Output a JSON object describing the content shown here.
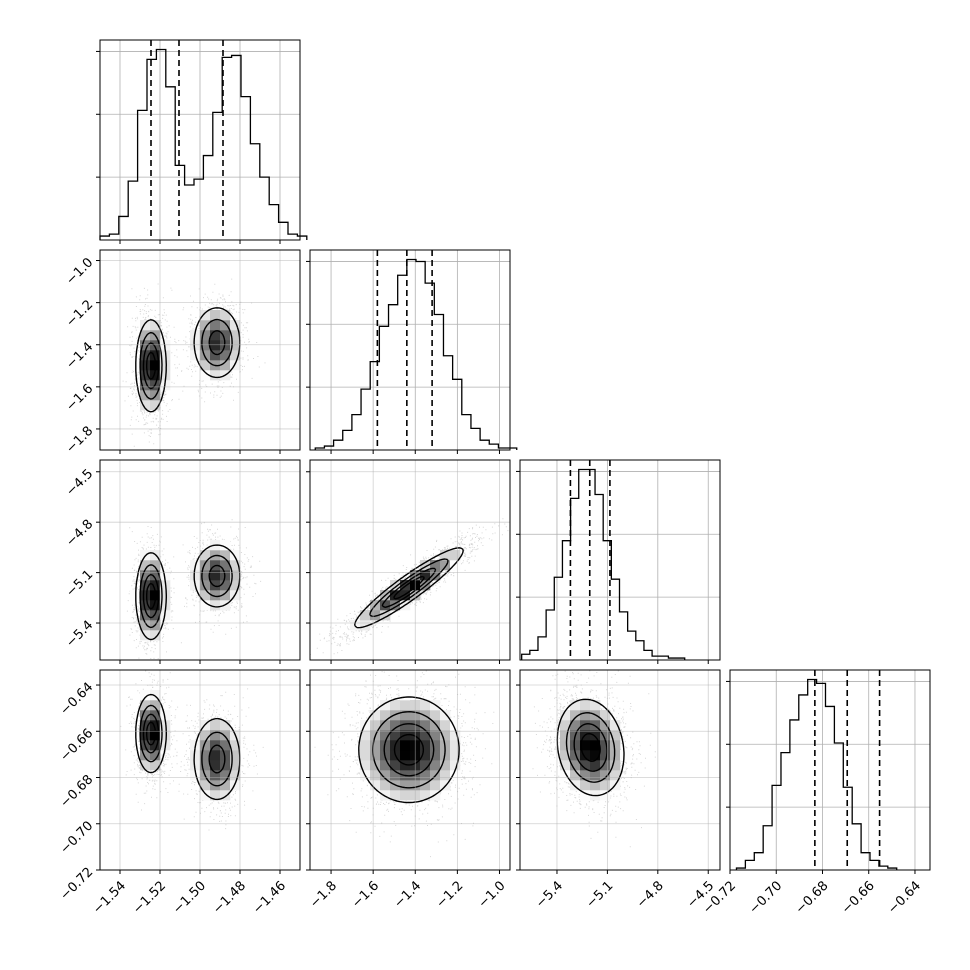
{
  "colors": {
    "ink": "#000000",
    "grid": "#b0b0b0",
    "scatter": "#8c8c8c"
  },
  "chart_data": {
    "type": "corner",
    "grid": true,
    "parameters": [
      {
        "range": [
          -1.55,
          -1.45
        ],
        "ticks": [
          -1.54,
          -1.52,
          -1.5,
          -1.48,
          -1.46
        ],
        "tick_labels": [
          "−1.54",
          "−1.52",
          "−1.50",
          "−1.48",
          "−1.46"
        ],
        "quantiles": [
          -1.5245,
          -1.5105,
          -1.4885
        ]
      },
      {
        "range": [
          -1.9,
          -0.95
        ],
        "ticks": [
          -1.8,
          -1.6,
          -1.4,
          -1.2,
          -1.0
        ],
        "tick_labels": [
          "−1.8",
          "−1.6",
          "−1.4",
          "−1.2",
          "−1.0"
        ],
        "quantiles": [
          -1.58,
          -1.44,
          -1.32
        ]
      },
      {
        "range": [
          -5.62,
          -4.43
        ],
        "ticks": [
          -5.4,
          -5.1,
          -4.8,
          -4.5
        ],
        "tick_labels": [
          "−5.4",
          "−5.1",
          "−4.8",
          "−4.5"
        ],
        "quantiles": [
          -5.32,
          -5.205,
          -5.085
        ]
      },
      {
        "range": [
          -0.72,
          -0.6335
        ],
        "ticks": [
          -0.72,
          -0.7,
          -0.68,
          -0.66,
          -0.64
        ],
        "tick_labels": [
          "−0.72",
          "−0.70",
          "−0.68",
          "−0.66",
          "−0.64"
        ],
        "quantiles": [
          -0.6833,
          -0.6693,
          -0.6553
        ]
      }
    ],
    "histograms": [
      {
        "param": 0,
        "edges_start": -1.55,
        "bin_width": 0.0047,
        "counts": [
          0.02,
          0.03,
          0.12,
          0.3,
          0.66,
          0.92,
          0.97,
          0.78,
          0.38,
          0.28,
          0.31,
          0.43,
          0.65,
          0.93,
          0.94,
          0.73,
          0.49,
          0.32,
          0.18,
          0.09,
          0.03,
          0.02
        ]
      },
      {
        "param": 1,
        "edges_start": -1.875,
        "bin_width": 0.0435,
        "counts": [
          0.01,
          0.02,
          0.05,
          0.1,
          0.18,
          0.31,
          0.45,
          0.63,
          0.74,
          0.89,
          0.97,
          0.96,
          0.85,
          0.69,
          0.48,
          0.36,
          0.18,
          0.11,
          0.05,
          0.03,
          0.01,
          0.01
        ]
      },
      {
        "param": 2,
        "edges_start": -5.61,
        "bin_width": 0.0485,
        "counts": [
          0.03,
          0.05,
          0.12,
          0.26,
          0.43,
          0.62,
          0.84,
          0.99,
          0.99,
          0.86,
          0.62,
          0.42,
          0.25,
          0.15,
          0.1,
          0.05,
          0.02,
          0.02,
          0.01,
          0.01
        ]
      },
      {
        "param": 3,
        "edges_start": -0.7172,
        "bin_width": 0.00385,
        "counts": [
          0.01,
          0.05,
          0.09,
          0.23,
          0.44,
          0.61,
          0.78,
          0.91,
          0.99,
          0.97,
          0.85,
          0.66,
          0.43,
          0.24,
          0.09,
          0.05,
          0.02,
          0.01
        ]
      }
    ],
    "pair_panels": [
      {
        "x": 0,
        "y": 1,
        "modes": [
          {
            "cx": -1.5245,
            "cy": -1.5,
            "sx": 0.0038,
            "sy": 0.11,
            "w": 1.0
          },
          {
            "cx": -1.4915,
            "cy": -1.39,
            "sx": 0.0062,
            "sy": 0.09,
            "w": 0.75
          }
        ]
      },
      {
        "x": 0,
        "y": 2,
        "modes": [
          {
            "cx": -1.5245,
            "cy": -5.24,
            "sx": 0.0038,
            "sy": 0.13,
            "w": 1.0
          },
          {
            "cx": -1.4915,
            "cy": -5.12,
            "sx": 0.0062,
            "sy": 0.1,
            "w": 0.75
          }
        ]
      },
      {
        "x": 0,
        "y": 3,
        "modes": [
          {
            "cx": -1.5245,
            "cy": -0.661,
            "sx": 0.0038,
            "sy": 0.0085,
            "w": 1.0
          },
          {
            "cx": -1.4915,
            "cy": -0.672,
            "sx": 0.0062,
            "sy": 0.0095,
            "w": 0.75
          }
        ]
      },
      {
        "x": 1,
        "y": 2,
        "modes": [
          {
            "cx": -1.43,
            "cy": -5.19,
            "sx": 0.13,
            "sy": 0.12,
            "rho": 0.93,
            "w": 1.0
          }
        ]
      },
      {
        "x": 1,
        "y": 3,
        "modes": [
          {
            "cx": -1.43,
            "cy": -0.668,
            "sx": 0.12,
            "sy": 0.0115,
            "w": 1.0
          }
        ]
      },
      {
        "x": 2,
        "y": 3,
        "modes": [
          {
            "cx": -5.2,
            "cy": -0.667,
            "sx": 0.1,
            "sy": 0.0105,
            "rho": -0.15,
            "w": 1.0
          }
        ]
      }
    ]
  }
}
